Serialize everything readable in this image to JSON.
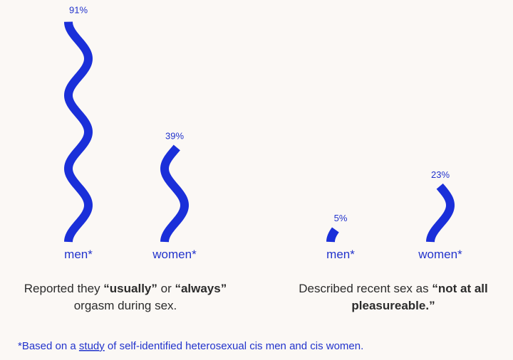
{
  "chart_data": [
    {
      "type": "wavy-bar",
      "categories": [
        "men*",
        "women*"
      ],
      "values": [
        91,
        39
      ],
      "value_labels": [
        "91%",
        "39%"
      ],
      "color": "#1a2fd9",
      "ylim": [
        0,
        100
      ],
      "caption": [
        [
          {
            "text": "Reported they ",
            "bold": false
          },
          {
            "text": "“usually”",
            "bold": true
          },
          {
            "text": " or ",
            "bold": false
          },
          {
            "text": "“always”",
            "bold": true
          }
        ],
        [
          {
            "text": "orgasm during sex.",
            "bold": false
          }
        ]
      ]
    },
    {
      "type": "wavy-bar",
      "categories": [
        "men*",
        "women*"
      ],
      "values": [
        5,
        23
      ],
      "value_labels": [
        "5%",
        "23%"
      ],
      "color": "#1a2fd9",
      "ylim": [
        0,
        100
      ],
      "caption": [
        [
          {
            "text": "Described recent sex as ",
            "bold": false
          },
          {
            "text": "“not at all",
            "bold": true
          }
        ],
        [
          {
            "text": "pleasureable.”",
            "bold": true
          }
        ]
      ]
    }
  ],
  "footnote": {
    "before": "*Based on a ",
    "link": "study",
    "after": " of self-identified heterosexual cis men and cis women."
  }
}
